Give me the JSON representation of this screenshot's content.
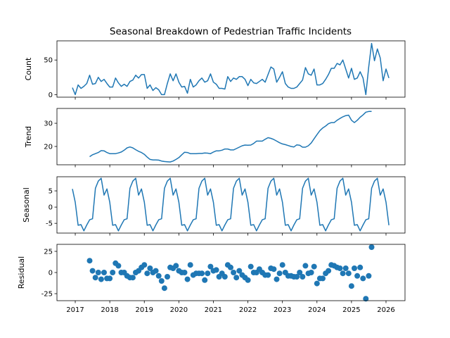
{
  "chart_data": {
    "type": "line",
    "title": "Seasonal Breakdown of Pedestrian Traffic Incidents",
    "x_start": 2016.917,
    "x_step_years": 0.08333,
    "xlim": [
      2016.47,
      2026.55
    ],
    "xticks": [
      2017,
      2018,
      2019,
      2020,
      2021,
      2022,
      2023,
      2024,
      2025,
      2026
    ],
    "color": "#1f77b4",
    "panels": [
      {
        "name": "count",
        "ylabel": "Count",
        "kind": "line",
        "offset": 0,
        "ylim": [
          -3.7,
          77.7
        ],
        "yticks": [
          0,
          50
        ],
        "values": [
          10,
          0,
          14,
          9,
          12,
          16,
          28,
          15,
          16,
          25,
          19,
          22,
          16,
          11,
          11,
          24,
          17,
          12,
          15,
          12,
          19,
          21,
          28,
          24,
          29,
          29,
          9,
          14,
          6,
          10,
          7,
          0,
          0,
          16,
          30,
          20,
          30,
          18,
          11,
          12,
          2,
          22,
          11,
          14,
          20,
          24,
          18,
          20,
          30,
          18,
          15,
          9,
          9,
          8,
          26,
          19,
          24,
          22,
          26,
          26,
          22,
          13,
          22,
          17,
          16,
          19,
          22,
          18,
          29,
          40,
          37,
          18,
          25,
          33,
          16,
          11,
          9,
          9,
          11,
          16,
          21,
          39,
          30,
          28,
          37,
          14,
          14,
          16,
          22,
          29,
          38,
          38,
          45,
          43,
          50,
          37,
          24,
          38,
          22,
          24,
          33,
          24,
          0,
          40,
          74,
          49,
          66,
          53,
          20,
          37,
          24
        ]
      },
      {
        "name": "trend",
        "ylabel": "Trend",
        "kind": "line",
        "offset": 6,
        "ylim": [
          12.1,
          36.4
        ],
        "yticks": [
          20,
          30
        ],
        "values": [
          15.6,
          16.4,
          16.9,
          17.4,
          18.2,
          18.1,
          17.4,
          16.9,
          16.9,
          16.9,
          17.2,
          17.6,
          18.4,
          19.4,
          19.8,
          19.4,
          18.6,
          17.9,
          17.4,
          16.6,
          15.4,
          14.4,
          14.2,
          14.2,
          14.1,
          13.7,
          13.5,
          13.4,
          13.3,
          13.7,
          14.4,
          15.2,
          16.4,
          17.5,
          17.4,
          16.9,
          16.9,
          16.9,
          17.0,
          17.0,
          17.2,
          17.1,
          16.9,
          17.6,
          18.1,
          18.1,
          18.4,
          18.9,
          18.9,
          18.5,
          18.5,
          19.1,
          19.7,
          20.3,
          20.6,
          20.5,
          20.6,
          21.3,
          22.3,
          22.3,
          22.3,
          23.1,
          23.8,
          23.5,
          23.0,
          22.3,
          21.6,
          21.1,
          20.8,
          20.4,
          20.0,
          19.8,
          20.7,
          20.5,
          19.7,
          19.7,
          20.3,
          21.5,
          23.3,
          25.1,
          26.8,
          28.0,
          28.8,
          29.8,
          30.3,
          30.3,
          31.3,
          32.1,
          32.8,
          33.3,
          33.5,
          31.3,
          30.3,
          31.3,
          32.6,
          33.6,
          34.8,
          35.1,
          35.1
        ]
      },
      {
        "name": "seasonal",
        "ylabel": "Seasonal",
        "kind": "line",
        "offset": 0,
        "ylim": [
          -8.0,
          9.35
        ],
        "yticks": [
          5,
          0,
          -5
        ],
        "period_values": [
          5.6,
          1.5,
          -5.6,
          -5.4,
          -7.3,
          -5.5,
          -3.9,
          -3.6,
          5.8,
          8.0,
          8.9,
          3.7
        ],
        "length": 111
      },
      {
        "name": "residual",
        "ylabel": "Residual",
        "kind": "scatter",
        "offset": 6,
        "ylim": [
          -33.3,
          33.3
        ],
        "yticks": [
          25,
          0,
          -25
        ],
        "values": [
          14,
          2,
          -6,
          0,
          -8,
          0,
          -7,
          -7,
          0,
          11,
          8,
          0,
          0,
          -4,
          -6,
          -6,
          0,
          2,
          6,
          9,
          -1,
          5,
          0,
          2,
          -4,
          -10,
          -18.5,
          -5,
          6,
          5,
          8,
          2,
          0,
          0,
          -8,
          9,
          -3,
          -1,
          -1,
          -1,
          -9,
          -1,
          7,
          2,
          3,
          -5,
          -1,
          -5,
          9,
          6,
          0,
          -6,
          2,
          -3,
          -6,
          -9,
          7,
          0,
          0,
          4,
          0,
          -3,
          -3,
          5,
          4,
          -8,
          -1,
          9,
          0,
          -4,
          -4,
          -5,
          -5,
          0,
          -5,
          8,
          -1,
          0,
          7,
          -13,
          -7,
          -7,
          -1,
          2,
          9,
          8,
          6,
          5,
          -1,
          5,
          -1,
          -16,
          5,
          -4,
          6,
          -7,
          -31,
          -4,
          30
        ]
      }
    ]
  }
}
